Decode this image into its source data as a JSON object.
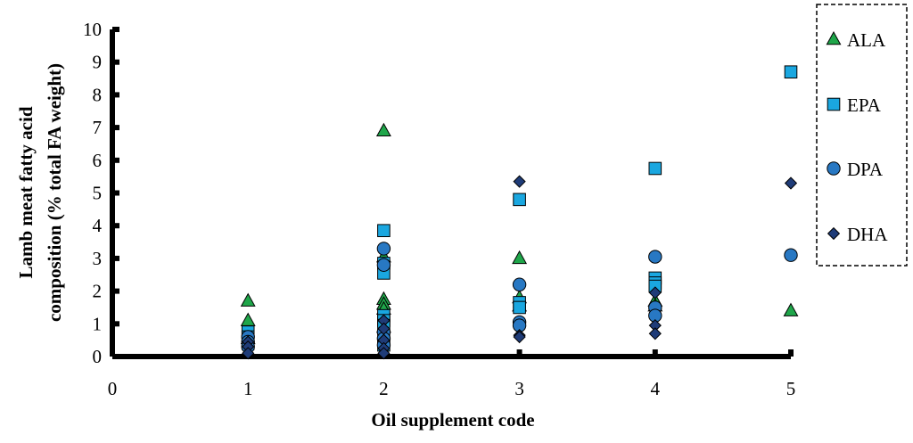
{
  "chart_data": {
    "type": "scatter",
    "title": "",
    "xlabel": "Oil supplement code",
    "ylabel_lines": [
      "Lamb meat fatty acid",
      "composition (% total FA weight)"
    ],
    "xlim": [
      0,
      5
    ],
    "ylim": [
      0,
      10
    ],
    "x_ticks": [
      "0",
      "1",
      "2",
      "3",
      "4",
      "5"
    ],
    "y_ticks": [
      "0",
      "1",
      "2",
      "3",
      "4",
      "5",
      "6",
      "7",
      "8",
      "9",
      "10"
    ],
    "grid": false,
    "legend_position": "right",
    "series": [
      {
        "name": "ALA",
        "marker": "triangle",
        "color": "#1fa64a",
        "points": [
          [
            1,
            1.7
          ],
          [
            1,
            1.1
          ],
          [
            1,
            0.55
          ],
          [
            2,
            6.9
          ],
          [
            2,
            3.05
          ],
          [
            2,
            1.75
          ],
          [
            2,
            1.6
          ],
          [
            2,
            1.45
          ],
          [
            2,
            0.9
          ],
          [
            3,
            3.0
          ],
          [
            3,
            1.8
          ],
          [
            3,
            1.55
          ],
          [
            4,
            1.7
          ],
          [
            4,
            1.55
          ],
          [
            5,
            1.4
          ]
        ]
      },
      {
        "name": "EPA",
        "marker": "square",
        "color": "#1aa7e0",
        "points": [
          [
            1,
            0.75
          ],
          [
            1,
            0.6
          ],
          [
            1,
            0.4
          ],
          [
            2,
            3.85
          ],
          [
            2,
            2.85
          ],
          [
            2,
            2.55
          ],
          [
            2,
            1.25
          ],
          [
            2,
            1.1
          ],
          [
            2,
            0.95
          ],
          [
            2,
            0.6
          ],
          [
            2,
            0.35
          ],
          [
            3,
            4.8
          ],
          [
            3,
            1.65
          ],
          [
            3,
            1.5
          ],
          [
            4,
            5.75
          ],
          [
            4,
            2.4
          ],
          [
            4,
            2.25
          ],
          [
            4,
            2.15
          ],
          [
            5,
            8.7
          ]
        ]
      },
      {
        "name": "DPA",
        "marker": "circle",
        "color": "#2878c3",
        "points": [
          [
            1,
            0.6
          ],
          [
            1,
            0.45
          ],
          [
            1,
            0.3
          ],
          [
            2,
            3.3
          ],
          [
            2,
            2.8
          ],
          [
            2,
            0.75
          ],
          [
            2,
            0.55
          ],
          [
            2,
            0.35
          ],
          [
            3,
            2.2
          ],
          [
            3,
            1.05
          ],
          [
            3,
            0.95
          ],
          [
            4,
            3.05
          ],
          [
            4,
            1.5
          ],
          [
            4,
            1.25
          ],
          [
            5,
            3.1
          ]
        ]
      },
      {
        "name": "DHA",
        "marker": "diamond",
        "color": "#1f3c78",
        "points": [
          [
            1,
            0.45
          ],
          [
            1,
            0.3
          ],
          [
            1,
            0.1
          ],
          [
            2,
            1.1
          ],
          [
            2,
            0.85
          ],
          [
            2,
            0.5
          ],
          [
            2,
            0.25
          ],
          [
            2,
            0.1
          ],
          [
            3,
            5.35
          ],
          [
            3,
            0.65
          ],
          [
            3,
            0.6
          ],
          [
            4,
            1.95
          ],
          [
            4,
            0.95
          ],
          [
            4,
            0.7
          ],
          [
            5,
            5.3
          ]
        ]
      }
    ]
  }
}
